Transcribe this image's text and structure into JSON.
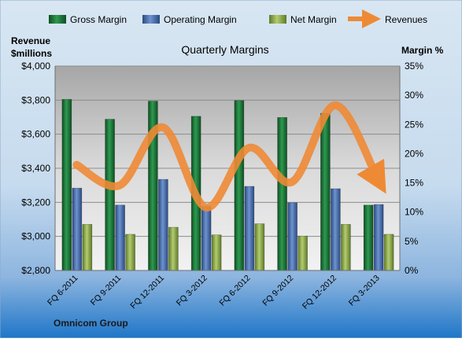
{
  "chart_data": {
    "type": "bar",
    "title": "Quarterly Margins",
    "footer": "Omnicom Group",
    "y_left_label": [
      "Revenue",
      "$millions"
    ],
    "y_right_label": "Margin %",
    "categories": [
      "FQ 6-2011",
      "FQ 9-2011",
      "FQ 12-2011",
      "FQ 3-2012",
      "FQ 6-2012",
      "FQ 9-2012",
      "FQ 12-2012",
      "FQ 3-2013"
    ],
    "ylim_left": [
      2800,
      4000
    ],
    "y_left_ticks": [
      "$2,800",
      "$3,000",
      "$3,200",
      "$3,400",
      "$3,600",
      "$3,800",
      "$4,000"
    ],
    "ylim_right": [
      0,
      35
    ],
    "y_right_ticks": [
      "0%",
      "5%",
      "10%",
      "15%",
      "20%",
      "25%",
      "30%",
      "35%"
    ],
    "grid": true,
    "legend_position": "top",
    "series": [
      {
        "name": "Gross Margin",
        "kind": "bar",
        "axis": "right",
        "color": "#1E7B3C",
        "values": [
          29.3,
          25.9,
          29.0,
          26.4,
          29.1,
          26.2,
          26.9,
          11.2
        ]
      },
      {
        "name": "Operating Margin",
        "kind": "bar",
        "axis": "right",
        "color": "#3F67A8",
        "values": [
          14.1,
          11.2,
          15.6,
          11.0,
          14.4,
          11.6,
          14.0,
          11.3
        ]
      },
      {
        "name": "Net Margin",
        "kind": "bar",
        "axis": "right",
        "color": "#8CA84A",
        "values": [
          7.9,
          6.2,
          7.4,
          6.1,
          8.0,
          5.9,
          7.9,
          6.2
        ]
      },
      {
        "name": "Revenues",
        "kind": "line",
        "axis": "left",
        "color": "#EE8A35",
        "values": [
          3420,
          3300,
          3640,
          3170,
          3520,
          3320,
          3770,
          3330
        ]
      }
    ],
    "colors": {
      "background_top": "#D8E6F2",
      "background_bottom": "#1F76C8",
      "plot_area": "#C9C9C9"
    }
  }
}
